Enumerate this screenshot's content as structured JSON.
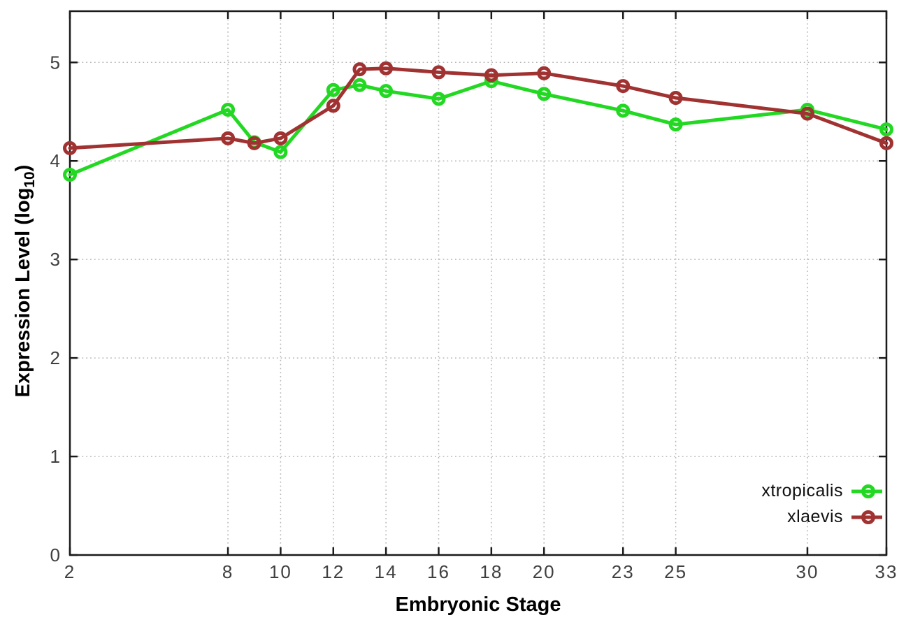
{
  "chart_data": {
    "type": "line",
    "title": "",
    "xlabel": "Embryonic Stage",
    "ylabel": "Expression Level (log10)",
    "ylabel_parts": {
      "main": "Expression Level (log",
      "sub": "10",
      "end": ")"
    },
    "x": [
      2,
      8,
      9,
      10,
      12,
      13,
      14,
      16,
      18,
      20,
      23,
      25,
      30,
      33
    ],
    "xticks": [
      2,
      8,
      10,
      12,
      14,
      16,
      18,
      20,
      23,
      25,
      30,
      33
    ],
    "yticks": [
      0,
      1,
      2,
      3,
      4,
      5
    ],
    "xlim": [
      2,
      33
    ],
    "ylim": [
      0,
      5.52
    ],
    "grid": true,
    "legend_position": "inside-bottom-right",
    "series": [
      {
        "name": "xtropicalis",
        "color": "#22d822",
        "values": [
          3.86,
          4.52,
          4.19,
          4.09,
          4.72,
          4.77,
          4.71,
          4.63,
          4.81,
          4.68,
          4.51,
          4.37,
          4.52,
          4.32
        ]
      },
      {
        "name": "xlaevis",
        "color": "#a03232",
        "values": [
          4.13,
          4.23,
          4.18,
          4.23,
          4.56,
          4.93,
          4.94,
          4.9,
          4.87,
          4.89,
          4.76,
          4.64,
          4.48,
          4.18
        ]
      }
    ],
    "colors": {
      "axis": "#1a1a1a",
      "grid": "#b5b5b5",
      "tick_label": "#3f3f3f"
    }
  }
}
